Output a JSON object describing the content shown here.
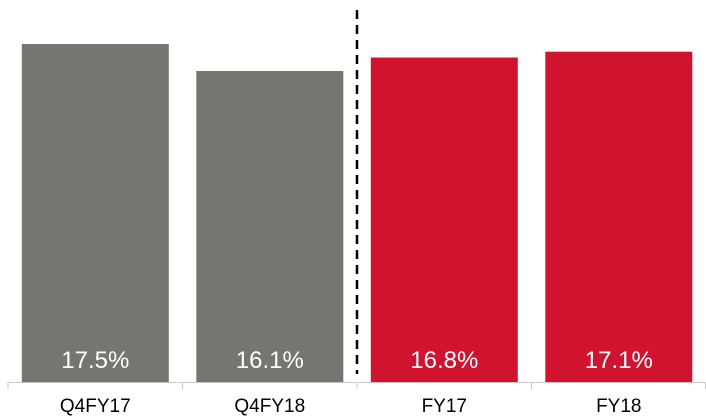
{
  "chart_data": {
    "type": "bar",
    "categories": [
      "Q4FY17",
      "Q4FY18",
      "FY17",
      "FY18"
    ],
    "values": [
      17.5,
      16.1,
      16.8,
      17.1
    ],
    "value_labels": [
      "17.5%",
      "16.1%",
      "16.8%",
      "17.1%"
    ],
    "bar_colors": [
      "#767670",
      "#767670",
      "#D01430",
      "#D01430"
    ],
    "ylim": [
      0,
      17.5
    ],
    "grid": false,
    "separator": {
      "type": "dashed-vertical",
      "between": [
        "Q4FY18",
        "FY17"
      ]
    },
    "title": "",
    "xlabel": "",
    "ylabel": ""
  }
}
